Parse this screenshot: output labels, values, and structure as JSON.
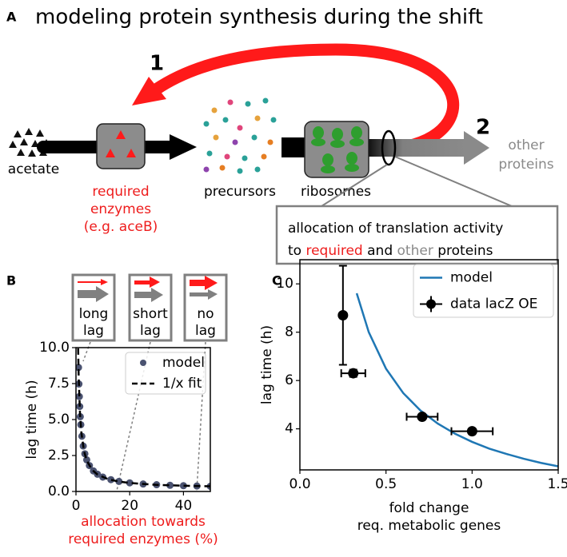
{
  "panel_labels": [
    "A",
    "B",
    "C"
  ],
  "panel_a": {
    "title": "modeling protein synthesis during the shift",
    "step_1": "1",
    "step_2": "2",
    "acetate": "acetate",
    "enzymes": [
      "required",
      "enzymes",
      "(e.g. aceB)"
    ],
    "precursors": "precursors",
    "ribosomes": "ribosomes",
    "other_proteins": [
      "other",
      "proteins"
    ],
    "callout": {
      "line_1": "allocation of translation activity",
      "line_2": [
        "to",
        "required",
        "and",
        "other",
        "proteins"
      ]
    }
  },
  "panel_b_boxes": [
    [
      "long",
      "lag"
    ],
    [
      "short",
      "lag"
    ],
    [
      "no",
      "lag"
    ]
  ],
  "chart_data": [
    {
      "type": "line",
      "y_label": "lag time (h)",
      "x_label": [
        "allocation towards",
        "required enzymes (%)"
      ],
      "x_label_color": "#ee1c1c",
      "xlim": [
        0,
        50
      ],
      "xticks": [
        0,
        20,
        40
      ],
      "ylim": [
        0,
        10
      ],
      "yticks": [
        {
          "value": 0,
          "label": "0.0"
        },
        {
          "value": 2.5,
          "label": "2.5"
        },
        {
          "value": 5,
          "label": "5.0"
        },
        {
          "value": 7.5,
          "label": "7.5"
        },
        {
          "value": 10,
          "label": "10.0"
        }
      ],
      "legend": "upper right",
      "series": [
        {
          "name": "model",
          "color": "#4a5270",
          "style": "points",
          "x": [
            0.95,
            1.1,
            1.25,
            1.4,
            1.6,
            1.8,
            2.2,
            2.7,
            3.3,
            4,
            5,
            6.5,
            8,
            10,
            13,
            16,
            20,
            25,
            30,
            35,
            40,
            45,
            50
          ],
          "values": [
            8.62,
            7.47,
            6.6,
            5.91,
            5.2,
            4.64,
            3.84,
            3.16,
            2.62,
            2.2,
            1.8,
            1.43,
            1.2,
            1.0,
            0.82,
            0.7,
            0.6,
            0.52,
            0.47,
            0.43,
            0.4,
            0.38,
            0.36
          ]
        },
        {
          "name": "1/x fit",
          "color": "#000000",
          "style": "dashed",
          "x": [
            0.8,
            1,
            1.5,
            2,
            3,
            4,
            6,
            8,
            12,
            16,
            20,
            30,
            40,
            50
          ],
          "values": [
            9.95,
            8.0,
            5.4,
            4.1,
            2.8,
            2.15,
            1.5,
            1.18,
            0.85,
            0.69,
            0.59,
            0.46,
            0.4,
            0.36
          ]
        }
      ]
    },
    {
      "type": "line",
      "y_label": "lag time (h)",
      "x_label": [
        "fold change",
        "req. metabolic genes"
      ],
      "x_label_color": "#000000",
      "xlim": [
        0,
        1.5
      ],
      "xticks": [
        {
          "value": 0,
          "label": "0.0"
        },
        {
          "value": 0.5,
          "label": "0.5"
        },
        {
          "value": 1,
          "label": "1.0"
        },
        {
          "value": 1.5,
          "label": "1.5"
        }
      ],
      "ylim": [
        2.3,
        11
      ],
      "yticks": [
        4,
        6,
        8,
        10
      ],
      "legend": "upper right",
      "series": [
        {
          "name": "model",
          "color": "#1f77b4",
          "style": "line",
          "x": [
            0.33,
            0.4,
            0.5,
            0.6,
            0.7,
            0.8,
            0.9,
            1.0,
            1.1,
            1.2,
            1.3,
            1.4,
            1.5
          ],
          "values": [
            9.61,
            8.0,
            6.49,
            5.48,
            4.76,
            4.22,
            3.8,
            3.46,
            3.18,
            2.96,
            2.76,
            2.59,
            2.45
          ]
        },
        {
          "name": "data lacZ OE",
          "color": "#000000",
          "style": "errorbar",
          "x": [
            0.25,
            0.31,
            0.71,
            1.0
          ],
          "values": [
            8.7,
            6.3,
            4.5,
            3.9
          ],
          "x_err": [
            0,
            0.07,
            0.09,
            0.12
          ],
          "y_err": [
            2.05,
            0.15,
            0.1,
            0.1
          ]
        }
      ]
    }
  ]
}
